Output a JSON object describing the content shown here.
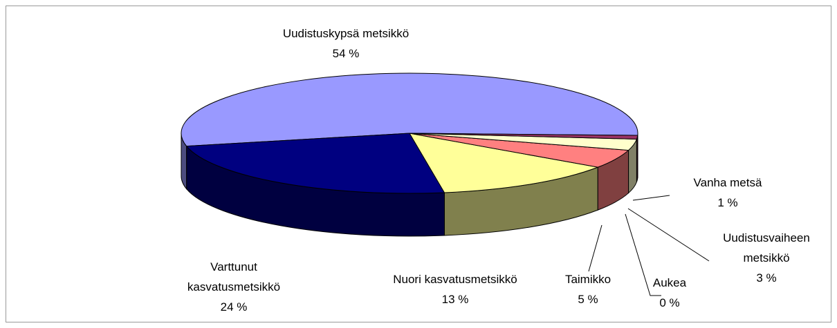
{
  "chart_data": {
    "type": "pie3d",
    "categories": [
      "Uudistuskypsä metsikkö",
      "Varttunut kasvatusmetsikkö",
      "Nuori kasvatusmetsikkö",
      "Taimikko",
      "Aukea",
      "Uudistusvaiheen metsikkö",
      "Vanha metsä"
    ],
    "values": [
      54,
      24,
      13,
      5,
      0,
      3,
      1
    ],
    "value_labels": [
      "54 %",
      "24 %",
      "13 %",
      "5 %",
      "0 %",
      "3 %",
      "1 %"
    ],
    "colors": [
      "#9999ff",
      "#000080",
      "#ffff99",
      "#ff8080",
      "#ccffff",
      "#ffffcc",
      "#993366"
    ]
  }
}
